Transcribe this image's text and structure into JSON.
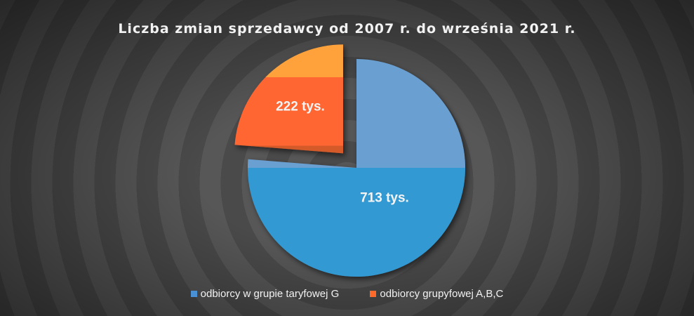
{
  "chart_data": {
    "type": "pie",
    "title": "Liczba zmian sprzedawcy od 2007 r. do września 2021 r.",
    "series": [
      {
        "name": "odbiorcy w grupie taryfowej G",
        "value": 713,
        "label": "713 tys.",
        "color": "#4a90d4"
      },
      {
        "name": "odbiorcy grupyfowej A,B,C",
        "value": 222,
        "label": "222 tys.",
        "color": "#ff6a2b"
      }
    ],
    "legend_position": "bottom",
    "exploded_slice": 1
  }
}
